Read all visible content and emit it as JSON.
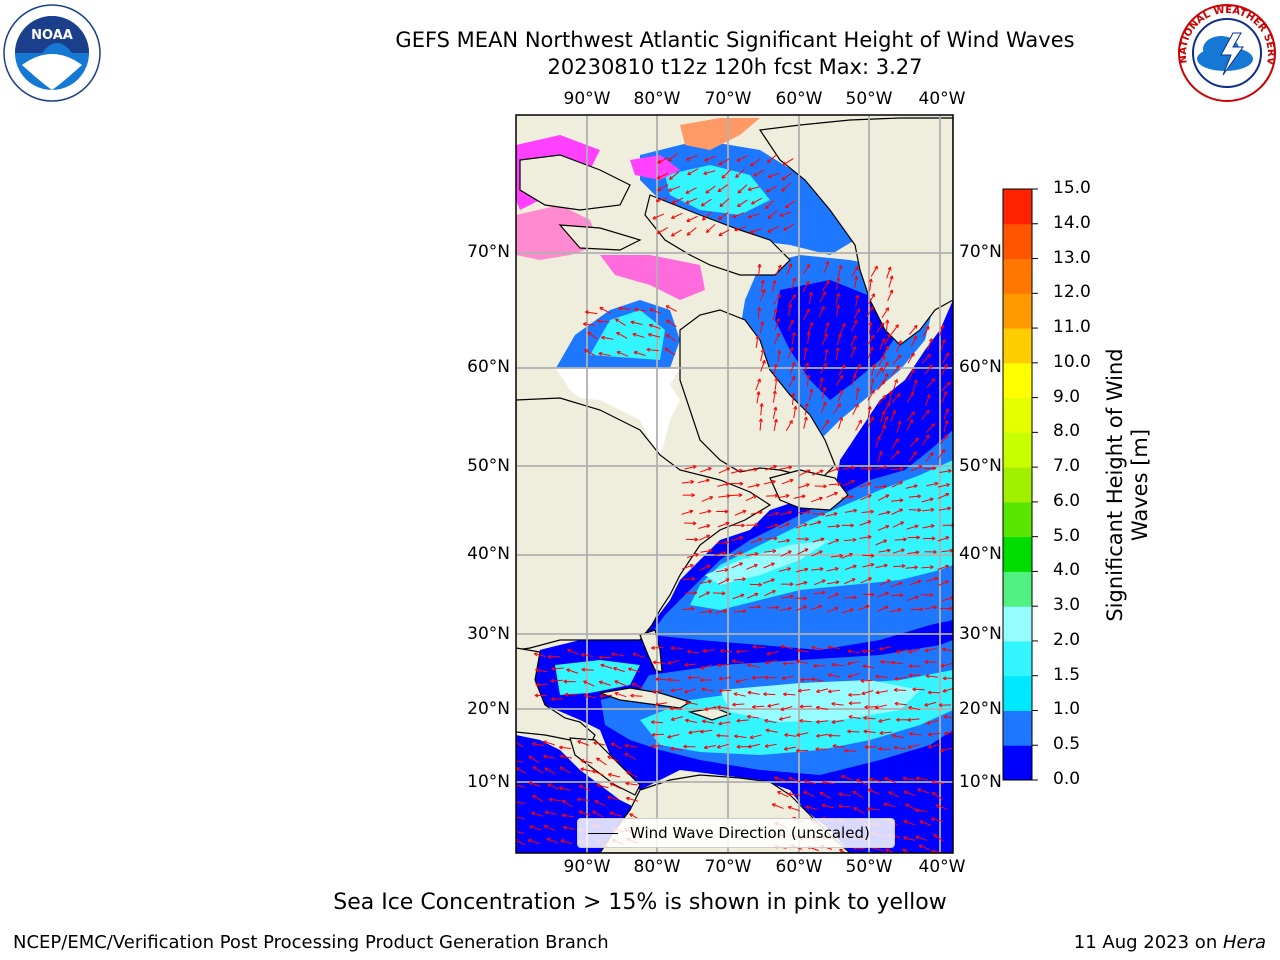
{
  "title": {
    "line1": "GEFS MEAN Northwest Atlantic Significant Height of Wind Waves",
    "line2": "20230810 t12z 120h fcst   Max: 3.27"
  },
  "map": {
    "lon_labels": [
      "90°W",
      "80°W",
      "70°W",
      "60°W",
      "50°W",
      "40°W"
    ],
    "lat_labels": [
      "70°N",
      "60°N",
      "50°N",
      "40°N",
      "30°N",
      "20°N",
      "10°N"
    ],
    "legend_label": "Wind Wave Direction (unscaled)",
    "land_color": "#efeddc",
    "arrow_color": "#ff0000"
  },
  "colorbar": {
    "label": "Significant Height of Wind Waves [m]",
    "ticks": [
      "0.0",
      "0.5",
      "1.0",
      "1.5",
      "2.0",
      "3.0",
      "4.0",
      "5.0",
      "6.0",
      "7.0",
      "8.0",
      "9.0",
      "10.0",
      "11.0",
      "12.0",
      "13.0",
      "14.0",
      "15.0"
    ],
    "colors": [
      "#0000ff",
      "#1e78ff",
      "#00e8ff",
      "#32f5ff",
      "#96fcff",
      "#50f081",
      "#00dc00",
      "#5ae600",
      "#a0f000",
      "#c8ff00",
      "#e6ff00",
      "#ffff00",
      "#ffcc00",
      "#ff9900",
      "#ff7700",
      "#ff5500",
      "#ff2200"
    ]
  },
  "subtitle": "Sea Ice Concentration > 15% is shown in pink to yellow",
  "footer": {
    "left": "NCEP/EMC/Verification Post Processing Product Generation Branch",
    "date": "11 Aug 2023 on ",
    "host": "Hera"
  },
  "logos": {
    "noaa": "NOAA",
    "nws": "NATIONAL WEATHER SERVICE"
  }
}
